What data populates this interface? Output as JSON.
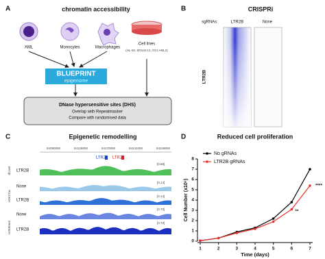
{
  "panel_a": {
    "letter": "A",
    "title": "chromatin accessibility",
    "cells": [
      "AML",
      "Monocytes",
      "Macrophages"
    ],
    "cell_lines": {
      "label": "Cell lines",
      "sublabel": "(HL-60, MOLM-13, OCI-AML3)"
    },
    "blueprint": {
      "name": "BLUEPRINT",
      "sub": "epigenome"
    },
    "dhs": {
      "title": "DNase hypersensitive sites (DHS)",
      "lines": [
        "Overlap with Repeatmasker",
        "Compare with randomised data"
      ]
    }
  },
  "panel_b": {
    "letter": "B",
    "title": "CRISPRi",
    "sgrnas_label": "sgRNAs:",
    "columns": [
      "LTR2B",
      "None"
    ],
    "row_label": "LTR2B"
  },
  "panel_c": {
    "letter": "C",
    "title": "Epigenetic remodelling",
    "coordinates": [
      "84090000",
      "84126000",
      "84170000",
      "84241000",
      "84249000"
    ],
    "features": [
      "LTR2",
      "LTR2"
    ],
    "groups": [
      "dCas9",
      "H3K27ac",
      "H3K9me3"
    ],
    "tracks": [
      {
        "label": "LTR2B",
        "range": "[0.68]"
      },
      {
        "label": "None",
        "range": "[0.14]"
      },
      {
        "label": "LTR2B",
        "range": "[0.14]"
      },
      {
        "label": "None",
        "range": "[0.70]"
      },
      {
        "label": "LTR2B",
        "range": "[0.70]"
      }
    ]
  },
  "chart_data": {
    "type": "line",
    "panel_label": "D",
    "title": "Reduced cell proliferation",
    "x_label": "Time (days)",
    "y_label": "Cell Number (x10⁶)",
    "x": [
      1,
      2,
      3,
      4,
      5,
      6,
      7
    ],
    "series": [
      {
        "name": "No gRNAs",
        "color": "#000000",
        "values": [
          0.05,
          0.3,
          0.9,
          1.3,
          2.2,
          3.8,
          7.0
        ]
      },
      {
        "name": "LTR2B gRNAs",
        "color": "#e8312a",
        "values": [
          0.05,
          0.3,
          0.8,
          1.2,
          1.9,
          3.1,
          5.4
        ]
      }
    ],
    "xlim": [
      1,
      7
    ],
    "xticks": [
      1,
      2,
      3,
      4,
      5,
      6,
      7
    ],
    "ylim": [
      0,
      8
    ],
    "yticks": [
      0,
      1,
      2,
      3,
      4,
      5,
      6,
      7,
      8
    ],
    "annotations": [
      "**",
      "****"
    ]
  }
}
